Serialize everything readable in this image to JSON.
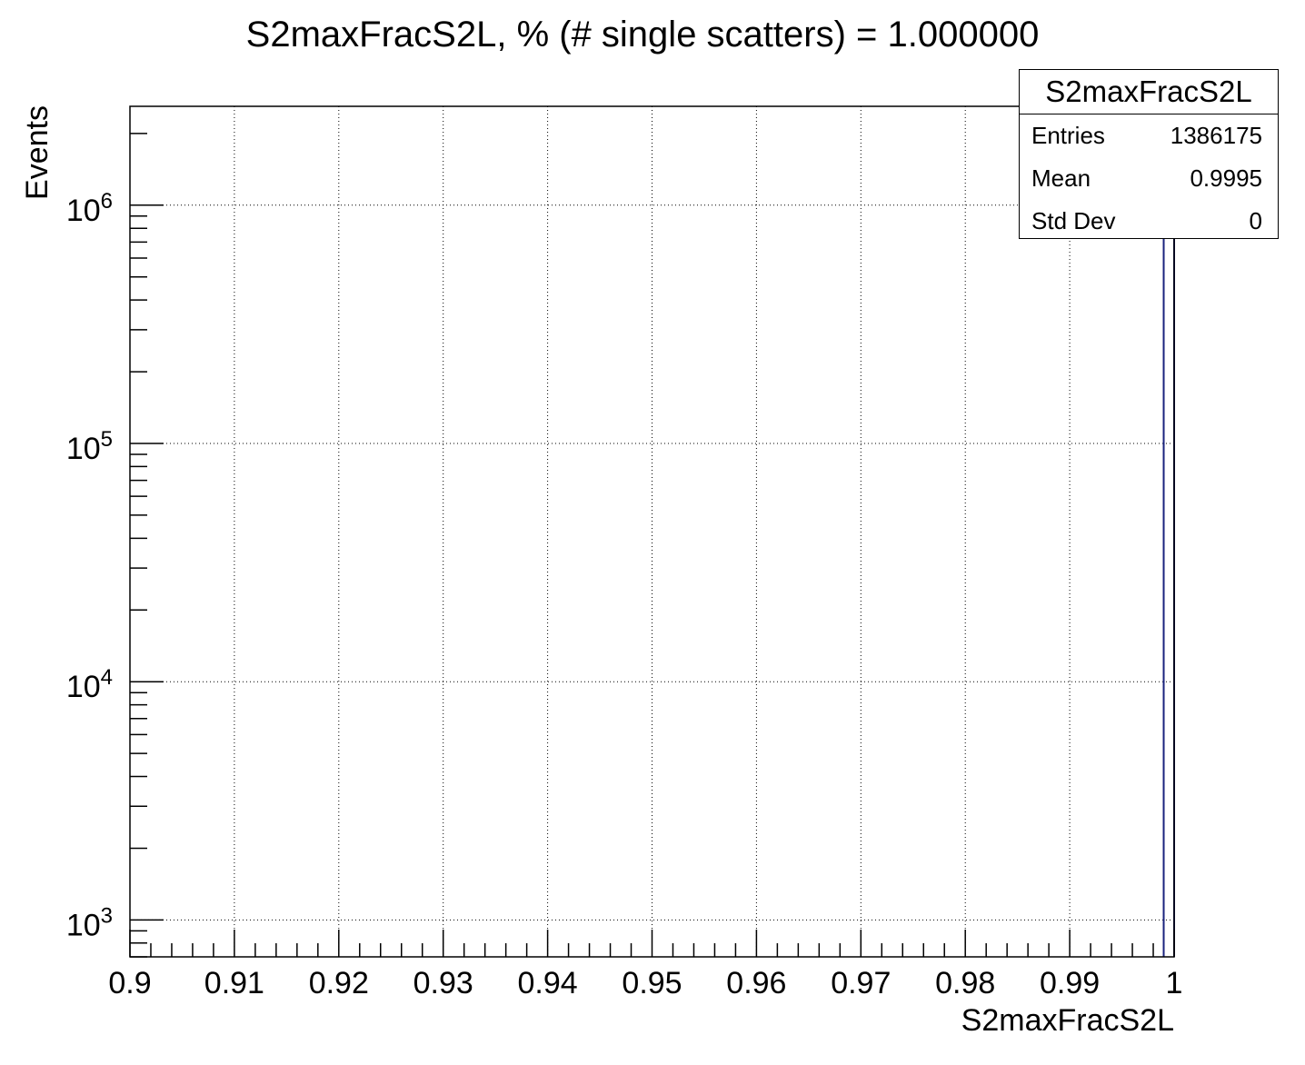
{
  "chart_data": {
    "type": "bar",
    "title": "S2maxFracS2L, % (# single scatters) = 1.000000",
    "xlabel": "S2maxFracS2L",
    "ylabel": "Events",
    "xlim": [
      0.9,
      1.0
    ],
    "ylim": [
      700,
      2600000
    ],
    "y_scale": "log",
    "grid": true,
    "x_ticks": [
      "0.9",
      "0.91",
      "0.92",
      "0.93",
      "0.94",
      "0.95",
      "0.96",
      "0.97",
      "0.98",
      "0.99",
      "1"
    ],
    "y_ticks": [
      {
        "value": 1000,
        "base": "10",
        "exp": "3"
      },
      {
        "value": 10000,
        "base": "10",
        "exp": "4"
      },
      {
        "value": 100000,
        "base": "10",
        "exp": "5"
      },
      {
        "value": 1000000,
        "base": "10",
        "exp": "6"
      }
    ],
    "bins": [
      {
        "x_low": 0.999,
        "x_high": 1.0,
        "value": 1386175
      }
    ],
    "series_color": "#1a237e"
  },
  "stats_box": {
    "name": "S2maxFracS2L",
    "rows": [
      {
        "label": "Entries",
        "value": "1386175"
      },
      {
        "label": "Mean",
        "value": "0.9995"
      },
      {
        "label": "Std Dev",
        "value": "0"
      }
    ]
  }
}
